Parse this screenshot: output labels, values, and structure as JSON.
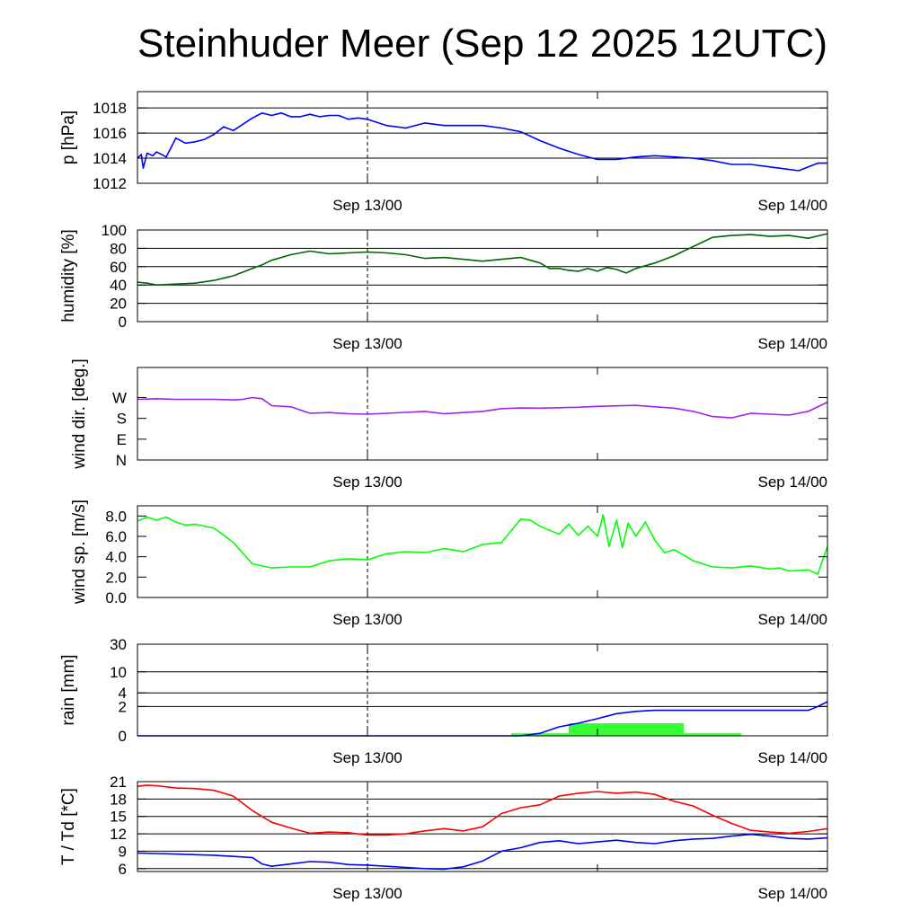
{
  "title": "Steinhuder Meer (Sep 12 2025 12UTC)",
  "colors": {
    "pressure": "#0000ff",
    "humidity": "#006400",
    "wind_dir": "#a020f0",
    "wind_speed": "#00ff00",
    "rain_bar": "#33ff33",
    "rain_cum": "#0000ff",
    "temperature": "#ff0000",
    "dewpoint": "#0000ff"
  },
  "chart_data": [
    {
      "type": "line",
      "ylabel": "p [hPa]",
      "x_ticks": [
        "Sep 13/00",
        "Sep 14/00"
      ],
      "x_range": [
        0,
        36
      ],
      "ylim": [
        1012,
        1019.3
      ],
      "y_ticks": [
        "1012",
        "1014",
        "1016",
        "1018"
      ],
      "y_tick_values": [
        1012,
        1014,
        1016,
        1018
      ],
      "grid_lines": [
        1014,
        1016,
        1018
      ],
      "series": [
        {
          "color_key": "pressure",
          "x": [
            0,
            0.2,
            0.3,
            0.5,
            0.8,
            1,
            1.5,
            2,
            2.5,
            3,
            3.5,
            4,
            4.5,
            5,
            5.5,
            6,
            6.5,
            7,
            7.5,
            8,
            8.5,
            9,
            9.5,
            10,
            10.5,
            11,
            11.5,
            12,
            13,
            14,
            15,
            16,
            17,
            18,
            19,
            20,
            21,
            22,
            23,
            24,
            25,
            26,
            27,
            28,
            29,
            30,
            31,
            32,
            33,
            34,
            34.5,
            35,
            35.5,
            36
          ],
          "y": [
            1014.0,
            1014.3,
            1013.2,
            1014.4,
            1014.2,
            1014.5,
            1014.1,
            1015.6,
            1015.2,
            1015.3,
            1015.5,
            1015.9,
            1016.5,
            1016.2,
            1016.7,
            1017.2,
            1017.6,
            1017.4,
            1017.6,
            1017.3,
            1017.3,
            1017.5,
            1017.3,
            1017.4,
            1017.4,
            1017.1,
            1017.2,
            1017.1,
            1016.6,
            1016.4,
            1016.8,
            1016.6,
            1016.6,
            1016.6,
            1016.4,
            1016.1,
            1015.4,
            1014.8,
            1014.3,
            1013.9,
            1013.9,
            1014.1,
            1014.2,
            1014.1,
            1014.0,
            1013.8,
            1013.5,
            1013.5,
            1013.3,
            1013.1,
            1013.0,
            1013.3,
            1013.6,
            1013.6
          ]
        }
      ]
    },
    {
      "type": "line",
      "ylabel": "humidity [%]",
      "x_ticks": [
        "Sep 13/00",
        "Sep 14/00"
      ],
      "x_range": [
        0,
        36
      ],
      "ylim": [
        0,
        100
      ],
      "y_ticks": [
        "0",
        "20",
        "40",
        "60",
        "80",
        "100"
      ],
      "y_tick_values": [
        0,
        20,
        40,
        60,
        80,
        100
      ],
      "grid_lines": [
        20,
        40,
        60,
        80
      ],
      "series": [
        {
          "color_key": "humidity",
          "x": [
            0,
            0.5,
            1,
            2,
            3,
            4,
            5,
            6,
            6.5,
            7,
            8,
            9,
            10,
            11,
            12,
            13,
            14,
            15,
            16,
            17,
            18,
            19,
            20,
            21,
            21.5,
            22,
            22.5,
            23,
            23.5,
            24,
            24.5,
            25,
            25.5,
            26,
            27,
            28,
            29,
            30,
            31,
            32,
            33,
            34,
            35,
            36
          ],
          "y": [
            43,
            42,
            40,
            41,
            42,
            45,
            50,
            58,
            62,
            67,
            73,
            77,
            74,
            75,
            76,
            75,
            73,
            69,
            70,
            68,
            66,
            68,
            70,
            64,
            58,
            58,
            56,
            55,
            58,
            55,
            59,
            57,
            53,
            58,
            64,
            72,
            82,
            92,
            94,
            95,
            93,
            94,
            91,
            96
          ]
        }
      ]
    },
    {
      "type": "line",
      "ylabel": "wind dir. [deg.]",
      "x_ticks": [
        "Sep 13/00",
        "Sep 14/00"
      ],
      "x_range": [
        0,
        36
      ],
      "ylim": [
        0,
        400
      ],
      "y_ticks": [
        "N",
        "E",
        "S",
        "W"
      ],
      "y_tick_values": [
        0,
        90,
        180,
        270
      ],
      "grid_lines": [],
      "series": [
        {
          "color_key": "wind_dir",
          "x": [
            0,
            1,
            2,
            3,
            4,
            5,
            5.5,
            6,
            6.5,
            7,
            8,
            9,
            10,
            11,
            12,
            13,
            14,
            15,
            16,
            17,
            18,
            19,
            20,
            21,
            22,
            23,
            24,
            25,
            26,
            27,
            28,
            29,
            30,
            31,
            32,
            33,
            34,
            35,
            36
          ],
          "y": [
            262,
            265,
            262,
            262,
            262,
            260,
            262,
            270,
            265,
            235,
            230,
            202,
            205,
            200,
            198,
            202,
            206,
            210,
            200,
            205,
            210,
            222,
            225,
            224,
            226,
            228,
            232,
            234,
            236,
            230,
            224,
            210,
            188,
            182,
            202,
            198,
            194,
            210,
            250
          ]
        }
      ]
    },
    {
      "type": "line",
      "ylabel": "wind sp. [m/s]",
      "x_ticks": [
        "Sep 13/00",
        "Sep 14/00"
      ],
      "x_range": [
        0,
        36
      ],
      "ylim": [
        0,
        9
      ],
      "y_ticks": [
        "0.0",
        "2.0",
        "4.0",
        "6.0",
        "8.0"
      ],
      "y_tick_values": [
        0,
        2,
        4,
        6,
        8
      ],
      "grid_lines": [],
      "series": [
        {
          "color_key": "wind_speed",
          "x": [
            0,
            0.5,
            1,
            1.5,
            2,
            2.5,
            3,
            4,
            5,
            6,
            7,
            8,
            9,
            10,
            11,
            12,
            13,
            14,
            15,
            16,
            17,
            18,
            19,
            20,
            20.5,
            21,
            22,
            22.5,
            23,
            23.5,
            24,
            24.3,
            24.6,
            25,
            25.3,
            25.6,
            26,
            26.5,
            27,
            27.5,
            28,
            29,
            30,
            31,
            32,
            33,
            33.5,
            34,
            35,
            35.5,
            36
          ],
          "y": [
            7.5,
            7.9,
            7.6,
            7.9,
            7.4,
            7.1,
            7.2,
            6.8,
            5.4,
            3.3,
            2.9,
            3.0,
            3.0,
            3.6,
            3.8,
            3.7,
            4.3,
            4.5,
            4.4,
            4.8,
            4.5,
            5.2,
            5.4,
            7.7,
            7.6,
            7.0,
            6.2,
            7.2,
            6.1,
            7.0,
            6.0,
            8.1,
            5.0,
            7.6,
            4.9,
            7.3,
            6.0,
            7.4,
            5.6,
            4.4,
            4.7,
            3.6,
            3.0,
            2.9,
            3.1,
            2.8,
            2.9,
            2.6,
            2.7,
            2.3,
            5.0
          ]
        }
      ]
    },
    {
      "type": "bar",
      "ylabel": "rain [mm]",
      "x_ticks": [
        "Sep 13/00",
        "Sep 14/00"
      ],
      "x_range": [
        0,
        36
      ],
      "ylim": [
        0,
        30
      ],
      "y_ticks": [
        "0",
        "2",
        "4",
        "10",
        "30"
      ],
      "y_tick_values": [
        0,
        2,
        4,
        10,
        30
      ],
      "grid_lines": [
        2,
        4,
        10,
        30
      ],
      "bars": [
        {
          "x0": 19.5,
          "x1": 22.5,
          "value": 0.1
        },
        {
          "x0": 22.5,
          "x1": 28.5,
          "value": 0.6
        },
        {
          "x0": 28.5,
          "x1": 31.5,
          "value": 0.1
        }
      ],
      "series": [
        {
          "color_key": "rain_cum",
          "x": [
            0,
            20,
            21,
            22,
            23,
            24,
            25,
            26,
            27,
            28,
            29,
            30,
            31,
            32,
            33,
            34,
            35,
            35.5,
            36
          ],
          "y": [
            0,
            0,
            0.1,
            0.4,
            0.6,
            0.9,
            1.3,
            1.5,
            1.6,
            1.6,
            1.6,
            1.6,
            1.6,
            1.6,
            1.6,
            1.6,
            1.6,
            2.0,
            2.6
          ]
        }
      ]
    },
    {
      "type": "line",
      "ylabel": "T / Td [*C]",
      "x_ticks": [
        "Sep 13/00",
        "Sep 14/00"
      ],
      "x_range": [
        0,
        36
      ],
      "ylim": [
        5.5,
        21
      ],
      "y_ticks": [
        "6",
        "9",
        "12",
        "15",
        "18",
        "21"
      ],
      "y_tick_values": [
        6,
        9,
        12,
        15,
        18,
        21
      ],
      "grid_lines": [
        6,
        9,
        12,
        15,
        18
      ],
      "series": [
        {
          "color_key": "temperature",
          "x": [
            0,
            0.5,
            1,
            2,
            3,
            4,
            5,
            6,
            7,
            8,
            9,
            10,
            11,
            12,
            13,
            14,
            15,
            16,
            17,
            18,
            19,
            20,
            21,
            22,
            23,
            24,
            25,
            26,
            27,
            28,
            29,
            30,
            31,
            32,
            33,
            34,
            35,
            36
          ],
          "y": [
            20.2,
            20.4,
            20.3,
            19.9,
            19.8,
            19.5,
            18.5,
            16.0,
            14.0,
            13.0,
            12.1,
            12.3,
            12.2,
            11.8,
            11.8,
            12.0,
            12.5,
            12.9,
            12.5,
            13.2,
            15.5,
            16.5,
            17.0,
            18.5,
            19.0,
            19.3,
            19.0,
            19.2,
            18.8,
            17.6,
            16.8,
            15.2,
            13.8,
            12.6,
            12.3,
            12.1,
            12.4,
            12.9
          ]
        },
        {
          "color_key": "dewpoint",
          "x": [
            0,
            1,
            2,
            3,
            4,
            5,
            6,
            6.5,
            7,
            8,
            9,
            10,
            11,
            12,
            13,
            14,
            15,
            16,
            17,
            18,
            19,
            20,
            21,
            22,
            23,
            24,
            25,
            26,
            27,
            28,
            29,
            30,
            31,
            32,
            33,
            34,
            35,
            36
          ],
          "y": [
            8.7,
            8.6,
            8.5,
            8.4,
            8.3,
            8.1,
            7.9,
            6.8,
            6.4,
            6.8,
            7.2,
            7.1,
            6.7,
            6.6,
            6.4,
            6.2,
            6.0,
            5.9,
            6.3,
            7.3,
            9.0,
            9.6,
            10.5,
            10.8,
            10.3,
            10.6,
            10.9,
            10.5,
            10.3,
            10.8,
            11.1,
            11.2,
            11.6,
            11.9,
            11.6,
            11.2,
            11.1,
            11.3
          ]
        }
      ]
    }
  ]
}
